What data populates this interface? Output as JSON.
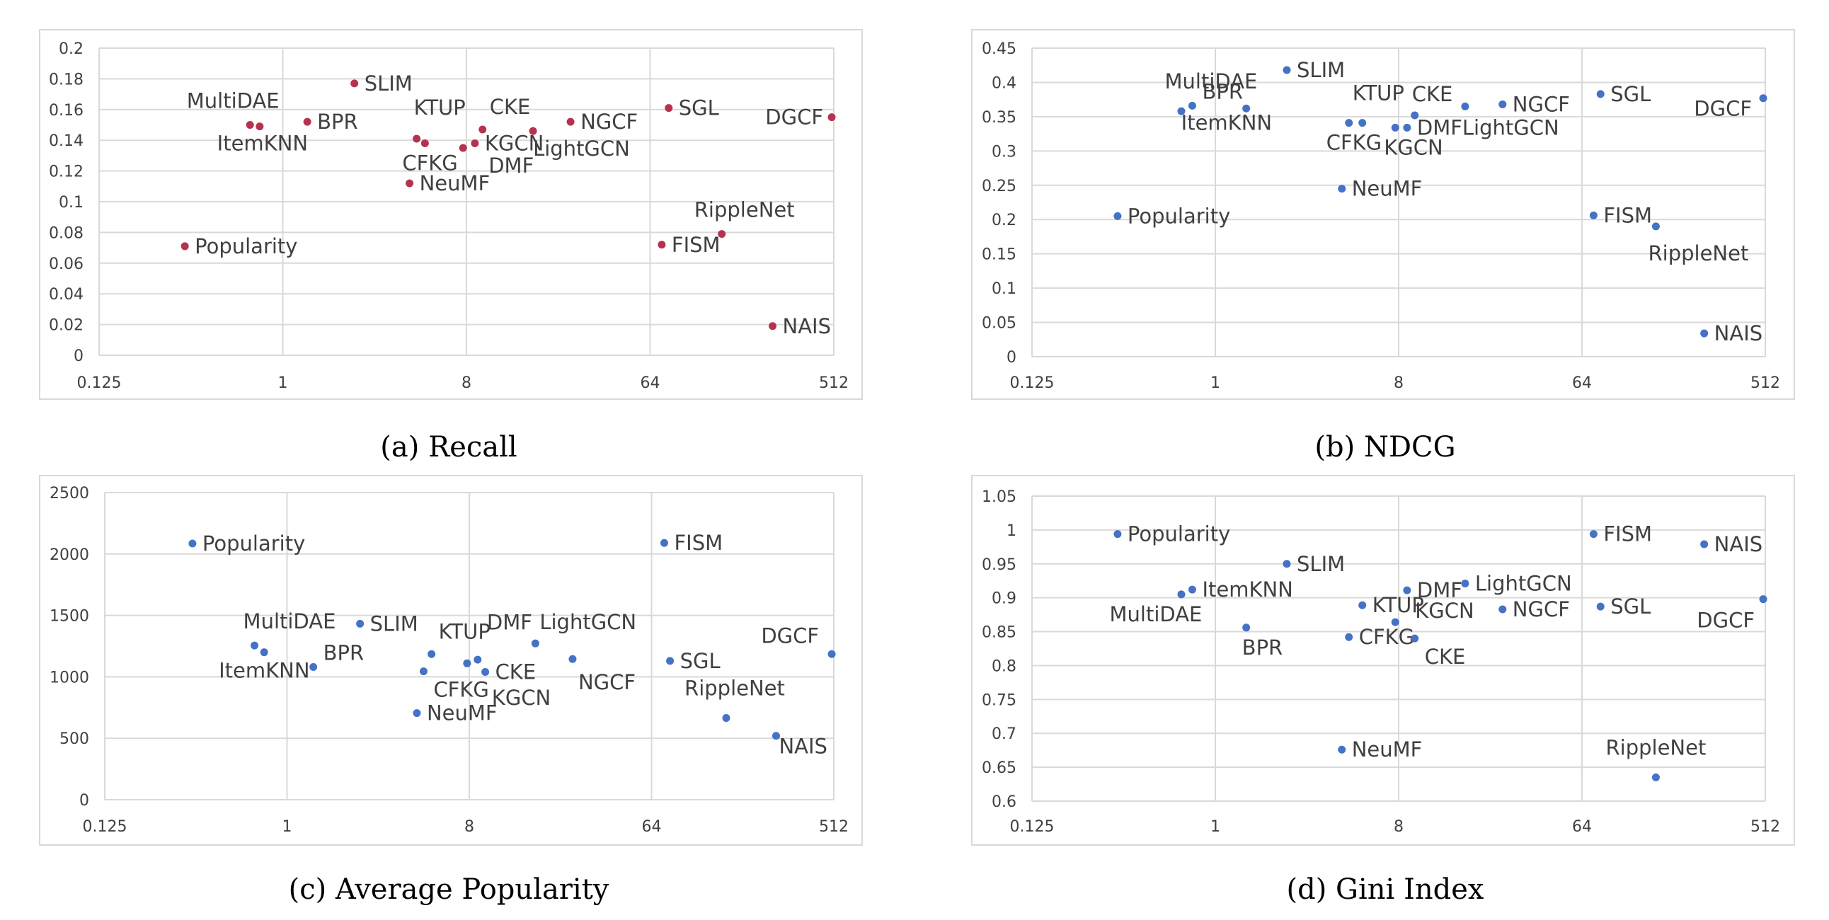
{
  "chart_data": [
    {
      "type": "scatter",
      "caption": "(a) Recall",
      "x_scale": "log2",
      "xlim": [
        0.125,
        512
      ],
      "x_ticks": [
        "0.125",
        "1",
        "8",
        "64",
        "512"
      ],
      "ylim": [
        0,
        0.2
      ],
      "y_ticks": [
        "0",
        "0.02",
        "0.04",
        "0.06",
        "0.08",
        "0.1",
        "0.12",
        "0.14",
        "0.16",
        "0.18",
        "0.2"
      ],
      "grid": true,
      "marker_color": "#b5334f",
      "points": [
        {
          "label": "Popularity",
          "x": 0.33,
          "y": 0.071
        },
        {
          "label": "MultiDAE",
          "x": 0.69,
          "y": 0.15
        },
        {
          "label": "ItemKNN",
          "x": 0.77,
          "y": 0.149
        },
        {
          "label": "BPR",
          "x": 1.32,
          "y": 0.152
        },
        {
          "label": "SLIM",
          "x": 2.25,
          "y": 0.177
        },
        {
          "label": "KTUP",
          "x": 4.55,
          "y": 0.141
        },
        {
          "label": "CFKG",
          "x": 5.0,
          "y": 0.138
        },
        {
          "label": "NeuMF",
          "x": 4.2,
          "y": 0.112
        },
        {
          "label": "DMF",
          "x": 7.7,
          "y": 0.135
        },
        {
          "label": "KGCN",
          "x": 8.8,
          "y": 0.138
        },
        {
          "label": "CKE",
          "x": 9.6,
          "y": 0.147
        },
        {
          "label": "LightGCN",
          "x": 17.0,
          "y": 0.146
        },
        {
          "label": "NGCF",
          "x": 26.0,
          "y": 0.152
        },
        {
          "label": "SGL",
          "x": 79.0,
          "y": 0.161
        },
        {
          "label": "FISM",
          "x": 73.0,
          "y": 0.072
        },
        {
          "label": "RippleNet",
          "x": 144.0,
          "y": 0.079
        },
        {
          "label": "NAIS",
          "x": 256.0,
          "y": 0.019
        },
        {
          "label": "DGCF",
          "x": 500.0,
          "y": 0.155
        }
      ]
    },
    {
      "type": "scatter",
      "caption": "(b) NDCG",
      "x_scale": "log2",
      "xlim": [
        0.125,
        512
      ],
      "x_ticks": [
        "0.125",
        "1",
        "8",
        "64",
        "512"
      ],
      "ylim": [
        0,
        0.45
      ],
      "y_ticks": [
        "0",
        "0.05",
        "0.1",
        "0.15",
        "0.2",
        "0.25",
        "0.3",
        "0.35",
        "0.4",
        "0.45"
      ],
      "grid": true,
      "marker_color": "#4472c4",
      "points": [
        {
          "label": "Popularity",
          "x": 0.33,
          "y": 0.205
        },
        {
          "label": "MultiDAE",
          "x": 0.68,
          "y": 0.358
        },
        {
          "label": "BPR",
          "x": 0.77,
          "y": 0.366
        },
        {
          "label": "ItemKNN",
          "x": 1.42,
          "y": 0.362
        },
        {
          "label": "SLIM",
          "x": 2.25,
          "y": 0.418
        },
        {
          "label": "NeuMF",
          "x": 4.2,
          "y": 0.245
        },
        {
          "label": "CFKG",
          "x": 4.55,
          "y": 0.341
        },
        {
          "label": "KTUP",
          "x": 5.3,
          "y": 0.341
        },
        {
          "label": "KGCN",
          "x": 7.7,
          "y": 0.334
        },
        {
          "label": "DMF",
          "x": 8.8,
          "y": 0.334
        },
        {
          "label": "CKE",
          "x": 9.6,
          "y": 0.352
        },
        {
          "label": "LightGCN",
          "x": 17.0,
          "y": 0.365
        },
        {
          "label": "NGCF",
          "x": 26.0,
          "y": 0.368
        },
        {
          "label": "FISM",
          "x": 73.0,
          "y": 0.206
        },
        {
          "label": "SGL",
          "x": 79.0,
          "y": 0.383
        },
        {
          "label": "RippleNet",
          "x": 148.0,
          "y": 0.19
        },
        {
          "label": "NAIS",
          "x": 256.0,
          "y": 0.034
        },
        {
          "label": "DGCF",
          "x": 500.0,
          "y": 0.377
        }
      ]
    },
    {
      "type": "scatter",
      "caption": "(c) Average Popularity",
      "x_scale": "log2",
      "xlim": [
        0.125,
        512
      ],
      "x_ticks": [
        "0.125",
        "1",
        "8",
        "64",
        "512"
      ],
      "ylim": [
        0,
        2500
      ],
      "y_ticks": [
        "0",
        "500",
        "1000",
        "1500",
        "2000",
        "2500"
      ],
      "grid": true,
      "marker_color": "#4472c4",
      "points": [
        {
          "label": "Popularity",
          "x": 0.34,
          "y": 2085
        },
        {
          "label": "MultiDAE",
          "x": 0.69,
          "y": 1255
        },
        {
          "label": "ItemKNN",
          "x": 0.77,
          "y": 1200
        },
        {
          "label": "BPR",
          "x": 1.35,
          "y": 1080
        },
        {
          "label": "SLIM",
          "x": 2.3,
          "y": 1432
        },
        {
          "label": "NeuMF",
          "x": 4.4,
          "y": 705
        },
        {
          "label": "CFKG",
          "x": 4.75,
          "y": 1045
        },
        {
          "label": "KTUP",
          "x": 5.2,
          "y": 1185
        },
        {
          "label": "DMF",
          "x": 7.8,
          "y": 1110
        },
        {
          "label": "KGCN",
          "x": 8.8,
          "y": 1140
        },
        {
          "label": "CKE",
          "x": 9.6,
          "y": 1040
        },
        {
          "label": "LightGCN",
          "x": 17.0,
          "y": 1272
        },
        {
          "label": "NGCF",
          "x": 26.0,
          "y": 1145
        },
        {
          "label": "FISM",
          "x": 74.0,
          "y": 2090
        },
        {
          "label": "SGL",
          "x": 79.0,
          "y": 1130
        },
        {
          "label": "RippleNet",
          "x": 150.0,
          "y": 665
        },
        {
          "label": "NAIS",
          "x": 265.0,
          "y": 520
        },
        {
          "label": "DGCF",
          "x": 500.0,
          "y": 1185
        }
      ]
    },
    {
      "type": "scatter",
      "caption": "(d) Gini Index",
      "x_scale": "log2",
      "xlim": [
        0.125,
        512
      ],
      "x_ticks": [
        "0.125",
        "1",
        "8",
        "64",
        "512"
      ],
      "ylim": [
        0.6,
        1.05
      ],
      "y_ticks": [
        "0.6",
        "0.65",
        "0.7",
        "0.75",
        "0.8",
        "0.85",
        "0.9",
        "0.95",
        "1",
        "1.05"
      ],
      "grid": true,
      "marker_color": "#4472c4",
      "points": [
        {
          "label": "Popularity",
          "x": 0.33,
          "y": 0.994
        },
        {
          "label": "MultiDAE",
          "x": 0.68,
          "y": 0.905
        },
        {
          "label": "ItemKNN",
          "x": 0.77,
          "y": 0.912
        },
        {
          "label": "BPR",
          "x": 1.42,
          "y": 0.856
        },
        {
          "label": "SLIM",
          "x": 2.25,
          "y": 0.95
        },
        {
          "label": "NeuMF",
          "x": 4.2,
          "y": 0.676
        },
        {
          "label": "CFKG",
          "x": 4.55,
          "y": 0.842
        },
        {
          "label": "KTUP",
          "x": 5.3,
          "y": 0.889
        },
        {
          "label": "KGCN",
          "x": 7.7,
          "y": 0.864
        },
        {
          "label": "DMF",
          "x": 8.8,
          "y": 0.911
        },
        {
          "label": "CKE",
          "x": 9.6,
          "y": 0.84
        },
        {
          "label": "LightGCN",
          "x": 17.0,
          "y": 0.921
        },
        {
          "label": "NGCF",
          "x": 26.0,
          "y": 0.883
        },
        {
          "label": "FISM",
          "x": 73.0,
          "y": 0.994
        },
        {
          "label": "SGL",
          "x": 79.0,
          "y": 0.887
        },
        {
          "label": "RippleNet",
          "x": 148.0,
          "y": 0.635
        },
        {
          "label": "NAIS",
          "x": 256.0,
          "y": 0.979
        },
        {
          "label": "DGCF",
          "x": 500.0,
          "y": 0.898
        }
      ]
    }
  ]
}
